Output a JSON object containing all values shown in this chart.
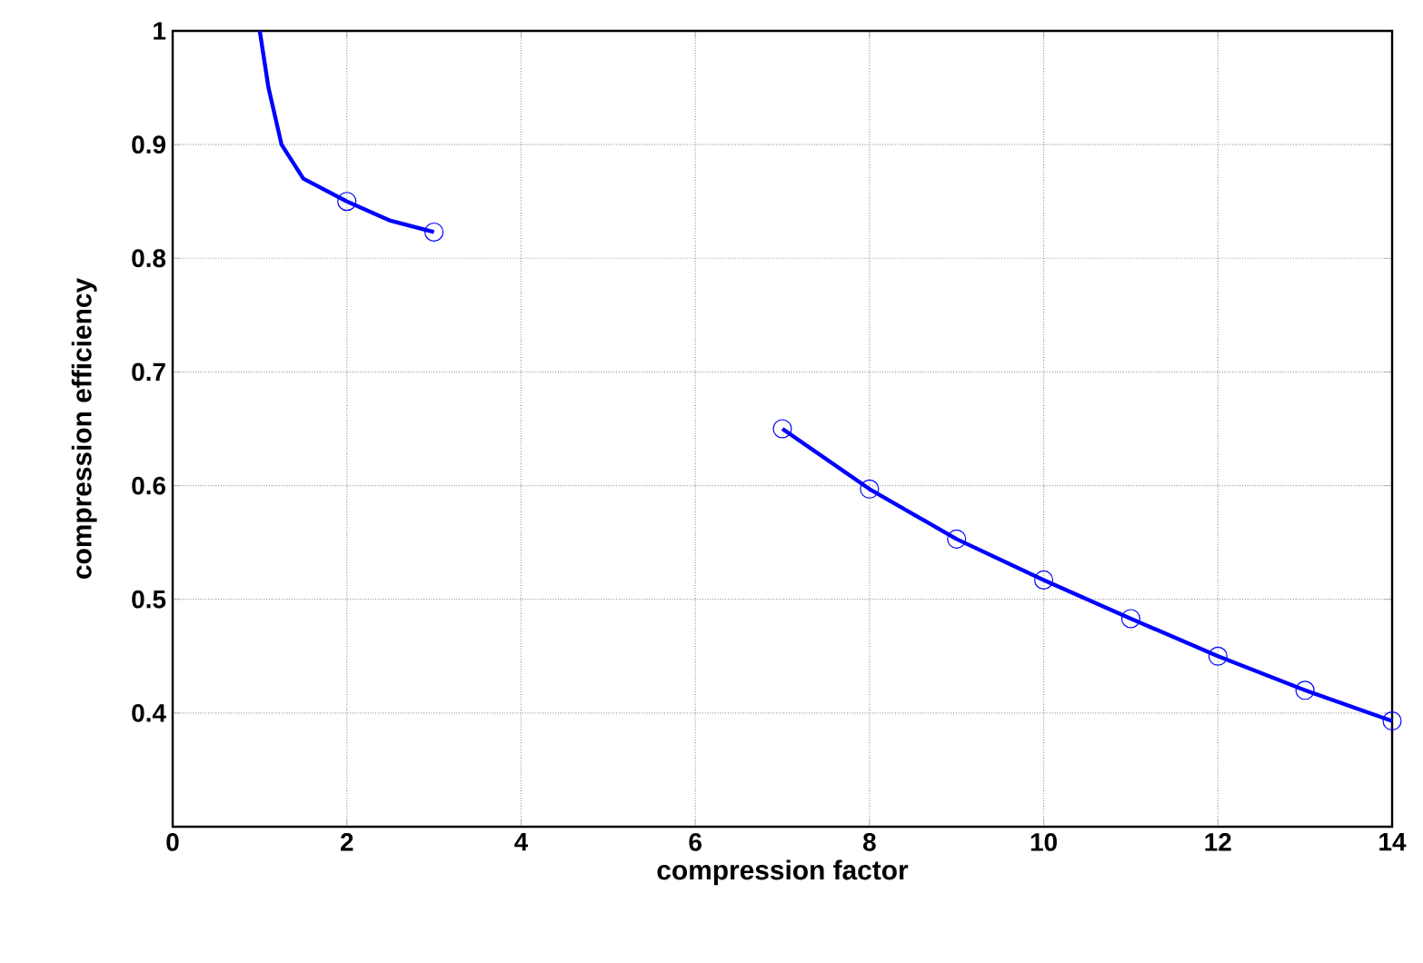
{
  "chart_data": {
    "type": "line",
    "xlabel": "compression factor",
    "ylabel": "compression efficiency",
    "xlim": [
      0,
      14
    ],
    "ylim": [
      0.3,
      1
    ],
    "xticks": [
      0,
      2,
      4,
      6,
      8,
      10,
      12,
      14
    ],
    "yticks": [
      0.4,
      0.5,
      0.6,
      0.7,
      0.8,
      0.9,
      1
    ],
    "grid": true,
    "line_style": "solid",
    "series": [
      {
        "marker": "none",
        "color": "#0000ff",
        "x": [
          1,
          1.1,
          1.25,
          1.5,
          2,
          2.5,
          3,
          4,
          7,
          8,
          9,
          10,
          11,
          12,
          13,
          14
        ],
        "values": [
          1,
          0.95,
          0.9,
          0.87,
          0.85,
          0.833,
          0.823,
          null,
          0.65,
          0.597,
          0.553,
          0.517,
          0.483,
          0.45,
          0.42,
          0.393
        ]
      },
      {
        "type": "scatter",
        "marker": "circle",
        "color": "#0000ff",
        "x": [
          2,
          3,
          7,
          8,
          9,
          10,
          11,
          12,
          13,
          14
        ],
        "values": [
          0.85,
          0.823,
          0.65,
          0.597,
          0.553,
          0.517,
          0.483,
          0.45,
          0.42,
          0.393
        ]
      }
    ]
  }
}
